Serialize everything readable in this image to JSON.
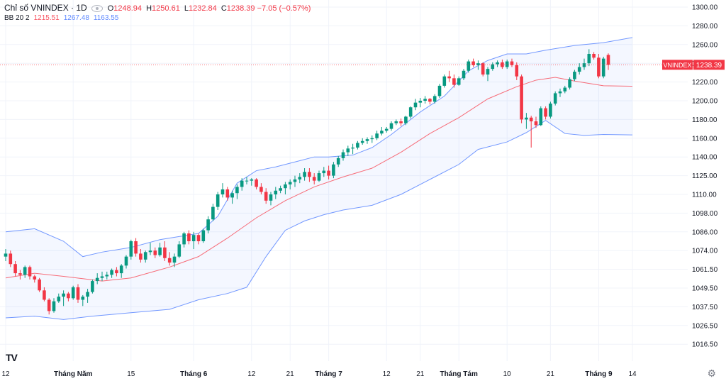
{
  "legend": {
    "title": "Chỉ số VNINDEX · 1D",
    "o_label": "O",
    "o_value": "1248.94",
    "h_label": "H",
    "h_value": "1250.61",
    "l_label": "L",
    "l_value": "1232.84",
    "c_label": "C",
    "c_value": "1238.39",
    "change": "−7.05 (−0.57%)",
    "bb_label": "BB 20 2",
    "bb_mid": "1215.51",
    "bb_upper": "1267.48",
    "bb_lower": "1163.55"
  },
  "price_tag": {
    "symbol": "VNINDEX",
    "value": "1238.39"
  },
  "colors": {
    "up": "#089981",
    "down": "#f23645",
    "band": "#2962ff",
    "basis": "#f7525f"
  },
  "icons": {
    "logo": "tradingview-logo",
    "settings": "gear-icon"
  },
  "chart_data": {
    "type": "candlestick",
    "y_ticks": [
      {
        "v": 1300,
        "label": "1300.00"
      },
      {
        "v": 1280,
        "label": "1280.00"
      },
      {
        "v": 1260,
        "label": "1260.00"
      },
      {
        "v": 1240,
        "label": "1240.00"
      },
      {
        "v": 1220,
        "label": "1220.00"
      },
      {
        "v": 1200,
        "label": "1200.00"
      },
      {
        "v": 1180,
        "label": "1180.00"
      },
      {
        "v": 1160,
        "label": "1160.00"
      },
      {
        "v": 1140,
        "label": "1140.00"
      },
      {
        "v": 1125,
        "label": "1125.00"
      },
      {
        "v": 1110,
        "label": "1110.00"
      },
      {
        "v": 1098,
        "label": "1098.00"
      },
      {
        "v": 1086,
        "label": "1086.00"
      },
      {
        "v": 1074,
        "label": "1074.00"
      },
      {
        "v": 1061.5,
        "label": "1061.50"
      },
      {
        "v": 1049.5,
        "label": "1049.50"
      },
      {
        "v": 1037.5,
        "label": "1037.50"
      },
      {
        "v": 1026.5,
        "label": "1026.50"
      },
      {
        "v": 1016.5,
        "label": "1016.50"
      }
    ],
    "x_ticks": [
      {
        "i": 0,
        "label": "12"
      },
      {
        "i": 14,
        "label": "Tháng Năm"
      },
      {
        "i": 26,
        "label": "15"
      },
      {
        "i": 39,
        "label": "Tháng 6"
      },
      {
        "i": 51,
        "label": "12"
      },
      {
        "i": 59,
        "label": "21"
      },
      {
        "i": 67,
        "label": "Tháng 7"
      },
      {
        "i": 79,
        "label": "12"
      },
      {
        "i": 86,
        "label": "21"
      },
      {
        "i": 94,
        "label": "Tháng Tám"
      },
      {
        "i": 104,
        "label": "10"
      },
      {
        "i": 113,
        "label": "21"
      },
      {
        "i": 123,
        "label": "Tháng 9"
      },
      {
        "i": 130,
        "label": "14"
      }
    ],
    "candles": [
      [
        1070,
        1075,
        1067,
        1072
      ],
      [
        1072,
        1074,
        1063,
        1065
      ],
      [
        1065,
        1067,
        1057,
        1059
      ],
      [
        1059,
        1061,
        1055,
        1058
      ],
      [
        1058,
        1064,
        1056,
        1063
      ],
      [
        1063,
        1064,
        1055,
        1057
      ],
      [
        1057,
        1058,
        1053,
        1055
      ],
      [
        1055,
        1056,
        1047,
        1048
      ],
      [
        1048,
        1050,
        1041,
        1042
      ],
      [
        1042,
        1043,
        1033,
        1035
      ],
      [
        1035,
        1043,
        1034,
        1041
      ],
      [
        1041,
        1046,
        1040,
        1044
      ],
      [
        1044,
        1048,
        1038,
        1046
      ],
      [
        1046,
        1047,
        1041,
        1043
      ],
      [
        1043,
        1051,
        1042,
        1050
      ],
      [
        1050,
        1052,
        1040,
        1042
      ],
      [
        1042,
        1045,
        1038,
        1044
      ],
      [
        1044,
        1049,
        1040,
        1047
      ],
      [
        1047,
        1055,
        1046,
        1054
      ],
      [
        1054,
        1059,
        1052,
        1056
      ],
      [
        1056,
        1060,
        1054,
        1057
      ],
      [
        1057,
        1060,
        1055,
        1058
      ],
      [
        1058,
        1062,
        1056,
        1061
      ],
      [
        1061,
        1063,
        1057,
        1059
      ],
      [
        1059,
        1065,
        1056,
        1064
      ],
      [
        1064,
        1071,
        1062,
        1070
      ],
      [
        1070,
        1081,
        1068,
        1080
      ],
      [
        1080,
        1082,
        1070,
        1072
      ],
      [
        1072,
        1075,
        1066,
        1068
      ],
      [
        1068,
        1074,
        1066,
        1073
      ],
      [
        1073,
        1079,
        1071,
        1074
      ],
      [
        1074,
        1076,
        1069,
        1071
      ],
      [
        1071,
        1079,
        1070,
        1076
      ],
      [
        1076,
        1080,
        1067,
        1069
      ],
      [
        1069,
        1073,
        1064,
        1066
      ],
      [
        1066,
        1072,
        1063,
        1070
      ],
      [
        1070,
        1080,
        1069,
        1078
      ],
      [
        1078,
        1086,
        1076,
        1085
      ],
      [
        1085,
        1087,
        1078,
        1080
      ],
      [
        1080,
        1086,
        1075,
        1084
      ],
      [
        1084,
        1085,
        1078,
        1080
      ],
      [
        1080,
        1088,
        1079,
        1087
      ],
      [
        1087,
        1096,
        1085,
        1094
      ],
      [
        1094,
        1104,
        1093,
        1102
      ],
      [
        1102,
        1112,
        1100,
        1110
      ],
      [
        1110,
        1119,
        1108,
        1114
      ],
      [
        1114,
        1116,
        1106,
        1108
      ],
      [
        1108,
        1113,
        1104,
        1111
      ],
      [
        1111,
        1118,
        1107,
        1116
      ],
      [
        1116,
        1123,
        1113,
        1121
      ],
      [
        1121,
        1124,
        1118,
        1121
      ],
      [
        1121,
        1123,
        1117,
        1122
      ],
      [
        1122,
        1123,
        1114,
        1116
      ],
      [
        1116,
        1119,
        1110,
        1112
      ],
      [
        1112,
        1115,
        1104,
        1106
      ],
      [
        1106,
        1112,
        1103,
        1110
      ],
      [
        1110,
        1116,
        1107,
        1113
      ],
      [
        1113,
        1117,
        1111,
        1115
      ],
      [
        1115,
        1120,
        1110,
        1118
      ],
      [
        1118,
        1122,
        1114,
        1120
      ],
      [
        1120,
        1125,
        1116,
        1122
      ],
      [
        1122,
        1127,
        1119,
        1124
      ],
      [
        1124,
        1131,
        1121,
        1128
      ],
      [
        1128,
        1131,
        1120,
        1124
      ],
      [
        1124,
        1127,
        1118,
        1121
      ],
      [
        1121,
        1129,
        1120,
        1127
      ],
      [
        1127,
        1132,
        1124,
        1129
      ],
      [
        1129,
        1133,
        1122,
        1125
      ],
      [
        1125,
        1136,
        1123,
        1134
      ],
      [
        1134,
        1141,
        1132,
        1139
      ],
      [
        1139,
        1148,
        1137,
        1145
      ],
      [
        1145,
        1152,
        1141,
        1149
      ],
      [
        1149,
        1154,
        1143,
        1150
      ],
      [
        1150,
        1157,
        1148,
        1155
      ],
      [
        1155,
        1160,
        1153,
        1157
      ],
      [
        1157,
        1161,
        1154,
        1159
      ],
      [
        1159,
        1163,
        1155,
        1160
      ],
      [
        1160,
        1168,
        1158,
        1165
      ],
      [
        1165,
        1172,
        1163,
        1168
      ],
      [
        1168,
        1172,
        1166,
        1170
      ],
      [
        1170,
        1178,
        1168,
        1176
      ],
      [
        1176,
        1180,
        1174,
        1178
      ],
      [
        1178,
        1181,
        1173,
        1176
      ],
      [
        1176,
        1184,
        1174,
        1183
      ],
      [
        1183,
        1194,
        1181,
        1193
      ],
      [
        1193,
        1202,
        1190,
        1198
      ],
      [
        1198,
        1203,
        1193,
        1200
      ],
      [
        1200,
        1205,
        1197,
        1202
      ],
      [
        1202,
        1203,
        1196,
        1199
      ],
      [
        1199,
        1207,
        1197,
        1205
      ],
      [
        1205,
        1218,
        1203,
        1216
      ],
      [
        1216,
        1228,
        1214,
        1226
      ],
      [
        1226,
        1232,
        1220,
        1224
      ],
      [
        1224,
        1228,
        1214,
        1217
      ],
      [
        1217,
        1226,
        1216,
        1224
      ],
      [
        1224,
        1234,
        1222,
        1232
      ],
      [
        1232,
        1244,
        1230,
        1242
      ],
      [
        1242,
        1245,
        1236,
        1238
      ],
      [
        1238,
        1243,
        1233,
        1240
      ],
      [
        1240,
        1241,
        1226,
        1228
      ],
      [
        1228,
        1236,
        1221,
        1234
      ],
      [
        1234,
        1241,
        1232,
        1239
      ],
      [
        1239,
        1243,
        1236,
        1241
      ],
      [
        1241,
        1244,
        1234,
        1236
      ],
      [
        1236,
        1244,
        1234,
        1242
      ],
      [
        1242,
        1245,
        1236,
        1238
      ],
      [
        1238,
        1241,
        1222,
        1226
      ],
      [
        1226,
        1228,
        1176,
        1180
      ],
      [
        1180,
        1187,
        1170,
        1182
      ],
      [
        1182,
        1184,
        1150,
        1178
      ],
      [
        1178,
        1183,
        1171,
        1174
      ],
      [
        1174,
        1194,
        1173,
        1192
      ],
      [
        1192,
        1194,
        1180,
        1183
      ],
      [
        1183,
        1199,
        1181,
        1197
      ],
      [
        1197,
        1210,
        1195,
        1208
      ],
      [
        1208,
        1213,
        1204,
        1210
      ],
      [
        1210,
        1216,
        1208,
        1214
      ],
      [
        1214,
        1225,
        1212,
        1223
      ],
      [
        1223,
        1233,
        1221,
        1231
      ],
      [
        1231,
        1240,
        1228,
        1236
      ],
      [
        1236,
        1245,
        1233,
        1240
      ],
      [
        1240,
        1255,
        1237,
        1250
      ],
      [
        1250,
        1252,
        1244,
        1246
      ],
      [
        1246,
        1250,
        1224,
        1226
      ],
      [
        1226,
        1247,
        1224,
        1245
      ],
      [
        1248.94,
        1250.61,
        1232.84,
        1238.39
      ]
    ],
    "bb_upper": [
      [
        0,
        1086
      ],
      [
        6,
        1088
      ],
      [
        12,
        1080
      ],
      [
        16,
        1070
      ],
      [
        20,
        1073
      ],
      [
        26,
        1076
      ],
      [
        32,
        1081
      ],
      [
        40,
        1085
      ],
      [
        44,
        1096
      ],
      [
        48,
        1119
      ],
      [
        52,
        1129
      ],
      [
        56,
        1132
      ],
      [
        61,
        1137
      ],
      [
        64,
        1140
      ],
      [
        67,
        1140
      ],
      [
        72,
        1142
      ],
      [
        76,
        1150
      ],
      [
        80,
        1164
      ],
      [
        86,
        1188
      ],
      [
        91,
        1205
      ],
      [
        96,
        1232
      ],
      [
        100,
        1243
      ],
      [
        104,
        1250
      ],
      [
        108,
        1250
      ],
      [
        112,
        1254
      ],
      [
        118,
        1259
      ],
      [
        124,
        1262
      ],
      [
        130,
        1267.48
      ]
    ],
    "bb_basis": [
      [
        0,
        1056
      ],
      [
        6,
        1059
      ],
      [
        12,
        1057
      ],
      [
        20,
        1054
      ],
      [
        26,
        1056
      ],
      [
        34,
        1063
      ],
      [
        40,
        1070
      ],
      [
        46,
        1082
      ],
      [
        52,
        1095
      ],
      [
        58,
        1106
      ],
      [
        64,
        1116
      ],
      [
        70,
        1124
      ],
      [
        76,
        1131
      ],
      [
        82,
        1145
      ],
      [
        88,
        1165
      ],
      [
        94,
        1182
      ],
      [
        100,
        1202
      ],
      [
        106,
        1215
      ],
      [
        110,
        1222
      ],
      [
        114,
        1225
      ],
      [
        118,
        1221
      ],
      [
        124,
        1216
      ],
      [
        130,
        1215.51
      ]
    ],
    "bb_lower": [
      [
        0,
        1031
      ],
      [
        6,
        1032
      ],
      [
        12,
        1030
      ],
      [
        18,
        1032
      ],
      [
        26,
        1034
      ],
      [
        34,
        1036
      ],
      [
        40,
        1042
      ],
      [
        46,
        1046
      ],
      [
        50,
        1050
      ],
      [
        54,
        1070
      ],
      [
        58,
        1087
      ],
      [
        62,
        1093
      ],
      [
        66,
        1097
      ],
      [
        70,
        1100
      ],
      [
        76,
        1103
      ],
      [
        82,
        1110
      ],
      [
        88,
        1122
      ],
      [
        94,
        1134
      ],
      [
        98,
        1148
      ],
      [
        104,
        1156
      ],
      [
        108,
        1166
      ],
      [
        112,
        1179
      ],
      [
        116,
        1165
      ],
      [
        120,
        1163
      ],
      [
        124,
        1164
      ],
      [
        130,
        1163.55
      ]
    ]
  }
}
